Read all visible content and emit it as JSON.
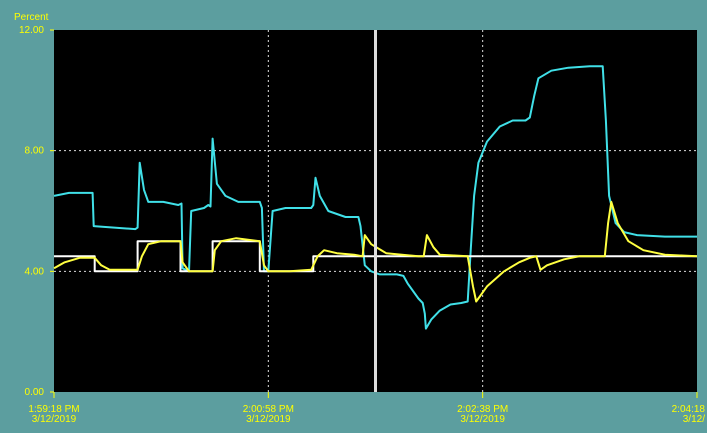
{
  "chart_data": {
    "type": "line",
    "ylabel": "Percent",
    "ylim": [
      0,
      12
    ],
    "yticks": [
      "12.00",
      "8.00",
      "4.00",
      "0.00"
    ],
    "ytick_values": [
      12,
      8,
      4,
      0
    ],
    "xlim": [
      0,
      3.0
    ],
    "xticks": [
      {
        "x": 0.0,
        "time": "1:59:18 PM",
        "date": "3/12/2019"
      },
      {
        "x": 1.0,
        "time": "2:00:58 PM",
        "date": "3/12/2019"
      },
      {
        "x": 2.0,
        "time": "2:02:38 PM",
        "date": "3/12/2019"
      },
      {
        "x": 3.0,
        "time": "2:04:18",
        "date": "3/12/"
      }
    ],
    "grid": true,
    "cursor_x": 1.5,
    "colors": {
      "plot_bg": "#000000",
      "frame_bg": "#5c9e9f",
      "grid": "#dddddd",
      "label": "#ffff00",
      "cursor": "#dddddd"
    },
    "series": [
      {
        "color": "#40e0e8",
        "points": [
          [
            0.0,
            6.5
          ],
          [
            0.07,
            6.6
          ],
          [
            0.18,
            6.6
          ],
          [
            0.185,
            5.5
          ],
          [
            0.38,
            5.4
          ],
          [
            0.39,
            5.45
          ],
          [
            0.4,
            7.6
          ],
          [
            0.42,
            6.7
          ],
          [
            0.44,
            6.3
          ],
          [
            0.51,
            6.3
          ],
          [
            0.58,
            6.2
          ],
          [
            0.595,
            6.25
          ],
          [
            0.6,
            4.1
          ],
          [
            0.63,
            4.0
          ],
          [
            0.64,
            6.0
          ],
          [
            0.7,
            6.1
          ],
          [
            0.72,
            6.2
          ],
          [
            0.73,
            6.15
          ],
          [
            0.74,
            8.4
          ],
          [
            0.76,
            6.9
          ],
          [
            0.8,
            6.5
          ],
          [
            0.86,
            6.3
          ],
          [
            0.96,
            6.3
          ],
          [
            0.97,
            6.1
          ],
          [
            0.98,
            4.0
          ],
          [
            1.0,
            4.0
          ],
          [
            1.02,
            6.0
          ],
          [
            1.08,
            6.1
          ],
          [
            1.2,
            6.1
          ],
          [
            1.21,
            6.2
          ],
          [
            1.22,
            7.1
          ],
          [
            1.24,
            6.5
          ],
          [
            1.28,
            6.0
          ],
          [
            1.36,
            5.8
          ],
          [
            1.42,
            5.8
          ],
          [
            1.43,
            5.5
          ],
          [
            1.45,
            4.2
          ],
          [
            1.48,
            4.0
          ],
          [
            1.52,
            3.9
          ],
          [
            1.6,
            3.9
          ],
          [
            1.63,
            3.85
          ],
          [
            1.65,
            3.6
          ],
          [
            1.7,
            3.1
          ],
          [
            1.72,
            2.95
          ],
          [
            1.73,
            2.6
          ],
          [
            1.735,
            2.1
          ],
          [
            1.76,
            2.4
          ],
          [
            1.8,
            2.7
          ],
          [
            1.85,
            2.9
          ],
          [
            1.9,
            2.95
          ],
          [
            1.93,
            3.0
          ],
          [
            1.945,
            4.8
          ],
          [
            1.96,
            6.5
          ],
          [
            1.98,
            7.6
          ],
          [
            2.02,
            8.3
          ],
          [
            2.08,
            8.8
          ],
          [
            2.14,
            9.0
          ],
          [
            2.2,
            9.0
          ],
          [
            2.22,
            9.1
          ],
          [
            2.24,
            9.8
          ],
          [
            2.26,
            10.4
          ],
          [
            2.32,
            10.65
          ],
          [
            2.4,
            10.75
          ],
          [
            2.5,
            10.8
          ],
          [
            2.56,
            10.8
          ],
          [
            2.575,
            9.0
          ],
          [
            2.59,
            6.5
          ],
          [
            2.62,
            5.6
          ],
          [
            2.66,
            5.3
          ],
          [
            2.72,
            5.2
          ],
          [
            2.85,
            5.15
          ],
          [
            3.0,
            5.15
          ]
        ]
      },
      {
        "color": "#ffffff",
        "points": [
          [
            0.0,
            4.5
          ],
          [
            0.19,
            4.5
          ],
          [
            0.19,
            4.0
          ],
          [
            0.39,
            4.0
          ],
          [
            0.39,
            5.0
          ],
          [
            0.59,
            5.0
          ],
          [
            0.59,
            4.0
          ],
          [
            0.74,
            4.0
          ],
          [
            0.74,
            5.0
          ],
          [
            0.96,
            5.0
          ],
          [
            0.96,
            4.0
          ],
          [
            1.21,
            4.0
          ],
          [
            1.21,
            4.5
          ],
          [
            3.0,
            4.5
          ]
        ]
      },
      {
        "color": "#ffff40",
        "points": [
          [
            0.0,
            4.1
          ],
          [
            0.05,
            4.3
          ],
          [
            0.12,
            4.45
          ],
          [
            0.19,
            4.45
          ],
          [
            0.22,
            4.2
          ],
          [
            0.26,
            4.05
          ],
          [
            0.39,
            4.05
          ],
          [
            0.41,
            4.5
          ],
          [
            0.44,
            4.9
          ],
          [
            0.5,
            5.0
          ],
          [
            0.59,
            5.0
          ],
          [
            0.6,
            4.3
          ],
          [
            0.63,
            4.0
          ],
          [
            0.74,
            4.0
          ],
          [
            0.75,
            4.7
          ],
          [
            0.78,
            5.0
          ],
          [
            0.85,
            5.1
          ],
          [
            0.96,
            5.0
          ],
          [
            0.98,
            4.2
          ],
          [
            1.0,
            4.0
          ],
          [
            1.1,
            4.0
          ],
          [
            1.2,
            4.05
          ],
          [
            1.23,
            4.5
          ],
          [
            1.26,
            4.7
          ],
          [
            1.32,
            4.6
          ],
          [
            1.4,
            4.55
          ],
          [
            1.44,
            4.5
          ],
          [
            1.45,
            5.2
          ],
          [
            1.48,
            4.9
          ],
          [
            1.55,
            4.6
          ],
          [
            1.7,
            4.5
          ],
          [
            1.725,
            4.5
          ],
          [
            1.74,
            5.2
          ],
          [
            1.77,
            4.8
          ],
          [
            1.8,
            4.55
          ],
          [
            1.93,
            4.5
          ],
          [
            1.955,
            3.5
          ],
          [
            1.97,
            3.0
          ],
          [
            2.02,
            3.5
          ],
          [
            2.1,
            4.0
          ],
          [
            2.17,
            4.3
          ],
          [
            2.22,
            4.45
          ],
          [
            2.25,
            4.5
          ],
          [
            2.27,
            4.05
          ],
          [
            2.3,
            4.2
          ],
          [
            2.38,
            4.4
          ],
          [
            2.45,
            4.5
          ],
          [
            2.57,
            4.5
          ],
          [
            2.585,
            5.6
          ],
          [
            2.6,
            6.3
          ],
          [
            2.63,
            5.6
          ],
          [
            2.68,
            5.0
          ],
          [
            2.75,
            4.7
          ],
          [
            2.85,
            4.55
          ],
          [
            3.0,
            4.5
          ]
        ]
      }
    ]
  }
}
